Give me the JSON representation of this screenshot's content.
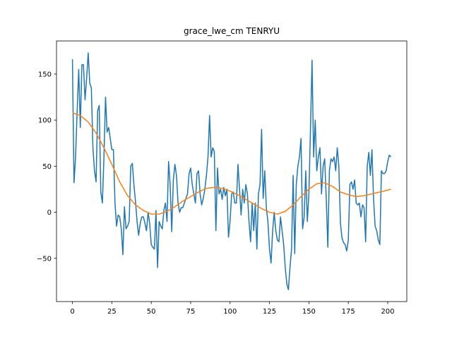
{
  "chart_data": {
    "type": "line",
    "title": "grace_lwe_cm TENRYU",
    "xlim": [
      -10.1,
      212.1
    ],
    "ylim": [
      -96.9,
      185.9
    ],
    "xticks": [
      0,
      25,
      50,
      75,
      100,
      125,
      150,
      175,
      200
    ],
    "yticks": [
      {
        "value": -50,
        "label": "−50"
      },
      0,
      50,
      100,
      150
    ],
    "series": [
      {
        "color": "#1f77b4",
        "x": [
          0,
          1,
          2,
          3,
          4,
          5,
          6,
          7,
          8,
          9,
          10,
          11,
          12,
          13,
          14,
          15,
          16,
          17,
          18,
          19,
          20,
          21,
          22,
          23,
          24,
          25,
          26,
          27,
          28,
          29,
          30,
          31,
          32,
          33,
          34,
          35,
          36,
          37,
          38,
          39,
          40,
          41,
          42,
          43,
          44,
          45,
          46,
          47,
          48,
          49,
          50,
          51,
          52,
          53,
          54,
          55,
          56,
          57,
          58,
          59,
          60,
          61,
          62,
          63,
          64,
          65,
          66,
          67,
          68,
          69,
          70,
          71,
          72,
          73,
          74,
          75,
          76,
          77,
          78,
          79,
          80,
          81,
          82,
          83,
          84,
          85,
          86,
          87,
          88,
          89,
          90,
          91,
          92,
          93,
          94,
          95,
          96,
          97,
          98,
          99,
          100,
          101,
          102,
          103,
          104,
          105,
          106,
          107,
          108,
          109,
          110,
          111,
          112,
          113,
          114,
          115,
          116,
          117,
          118,
          119,
          120,
          121,
          122,
          123,
          124,
          125,
          126,
          127,
          128,
          129,
          130,
          131,
          132,
          133,
          134,
          135,
          136,
          137,
          138,
          139,
          140,
          141,
          142,
          143,
          144,
          145,
          146,
          147,
          148,
          149,
          150,
          151,
          152,
          153,
          154,
          155,
          156,
          157,
          158,
          159,
          160,
          161,
          162,
          163,
          164,
          165,
          166,
          167,
          168,
          169,
          170,
          171,
          172,
          173,
          174,
          175,
          176,
          177,
          178,
          179,
          180,
          181,
          182,
          183,
          184,
          185,
          186,
          187,
          188,
          189,
          190,
          191,
          192,
          193,
          194,
          195,
          196,
          197,
          198,
          199,
          200,
          201,
          202
        ],
        "values": [
          166,
          32,
          60,
          110,
          155,
          92,
          160,
          160,
          122,
          145,
          173,
          140,
          135,
          70,
          45,
          33,
          110,
          116,
          22,
          10,
          60,
          125,
          87,
          92,
          80,
          68,
          68,
          10,
          -15,
          -3,
          -5,
          -18,
          -46,
          6,
          -18,
          -15,
          -10,
          50,
          53,
          30,
          12,
          -10,
          -25,
          -12,
          -5,
          -5,
          -12,
          -20,
          0,
          -12,
          -35,
          -38,
          -40,
          2,
          -60,
          -10,
          -15,
          -18,
          2,
          10,
          -10,
          55,
          30,
          -21,
          35,
          52,
          40,
          10,
          0,
          5,
          5,
          10,
          15,
          20,
          42,
          48,
          30,
          20,
          10,
          42,
          45,
          20,
          8,
          15,
          25,
          40,
          60,
          105,
          60,
          70,
          66,
          -20,
          48,
          20,
          25,
          14,
          27,
          18,
          25,
          -27,
          -10,
          20,
          22,
          10,
          10,
          52,
          25,
          -3,
          25,
          10,
          30,
          20,
          -10,
          -32,
          10,
          -20,
          10,
          -40,
          20,
          30,
          90,
          15,
          45,
          5,
          -10,
          -40,
          -55,
          -20,
          0,
          -20,
          -30,
          -32,
          -5,
          -20,
          -35,
          -60,
          -78,
          -84,
          -60,
          -40,
          40,
          -45,
          30,
          50,
          60,
          80,
          -18,
          -5,
          45,
          -10,
          20,
          90,
          165,
          60,
          100,
          45,
          60,
          70,
          20,
          50,
          58,
          15,
          -38,
          45,
          58,
          55,
          60,
          45,
          70,
          50,
          -12,
          -28,
          -33,
          -35,
          -42,
          -30,
          30,
          33,
          25,
          35,
          10,
          8,
          10,
          -5,
          8,
          5,
          -32,
          50,
          65,
          40,
          68,
          15,
          -15,
          -20,
          -30,
          -35,
          45,
          42,
          42,
          45,
          55,
          62,
          60
        ]
      },
      {
        "color": "#ff7f0e",
        "x": [
          0,
          5,
          10,
          15,
          20,
          25,
          30,
          35,
          40,
          45,
          50,
          55,
          60,
          65,
          70,
          75,
          80,
          85,
          90,
          95,
          100,
          105,
          110,
          115,
          120,
          125,
          130,
          135,
          140,
          145,
          150,
          155,
          160,
          165,
          170,
          175,
          180,
          185,
          190,
          195,
          200,
          202
        ],
        "values": [
          108,
          105,
          98,
          86,
          70,
          52,
          33,
          18,
          8,
          2,
          -2,
          -2,
          1,
          6,
          12,
          17,
          22,
          26,
          27,
          26,
          23,
          19,
          14,
          9,
          4,
          0,
          -2,
          1,
          8,
          17,
          25,
          31,
          32,
          28,
          22,
          19,
          17,
          18,
          20,
          22,
          24,
          25
        ]
      }
    ]
  }
}
